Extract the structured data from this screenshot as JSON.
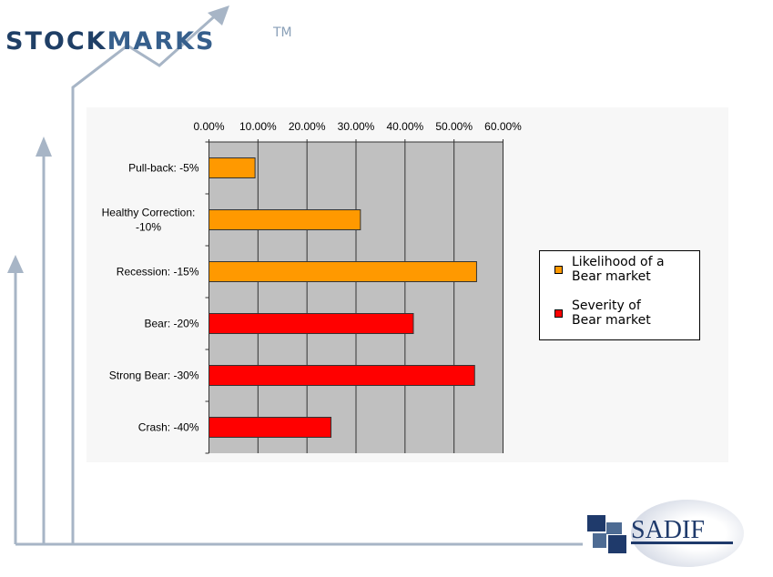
{
  "logo": {
    "text_a": "STOCK",
    "text_b": "MARKS",
    "tm": "TM"
  },
  "brand": {
    "text": "SADIF"
  },
  "chart_data": {
    "type": "bar",
    "orientation": "horizontal",
    "categories": [
      "Pull-back: -5%",
      "Healthy Correction: -10%",
      "Recession: -15%",
      "Bear: -20%",
      "Strong Bear: -30%",
      "Crash: -40%"
    ],
    "category_lines": [
      [
        "Pull-back: -5%"
      ],
      [
        "Healthy Correction:",
        "-10%"
      ],
      [
        "Recession: -15%"
      ],
      [
        "Bear: -20%"
      ],
      [
        "Strong Bear: -30%"
      ],
      [
        "Crash: -40%"
      ]
    ],
    "values": [
      9.4,
      30.9,
      54.6,
      41.7,
      54.2,
      24.9
    ],
    "series_index": [
      0,
      0,
      0,
      1,
      1,
      1
    ],
    "series": [
      {
        "name": "Likelihood of a Bear market",
        "name_lines": [
          "Likelihood of a",
          "Bear market"
        ],
        "color": "#ff9900"
      },
      {
        "name": "Severity of Bear market",
        "name_lines": [
          "Severity of",
          "Bear market"
        ],
        "color": "#ff0000"
      }
    ],
    "xlim": [
      0,
      60
    ],
    "xticks": [
      "0.00%",
      "10.00%",
      "20.00%",
      "30.00%",
      "40.00%",
      "50.00%",
      "60.00%"
    ],
    "axis_position": "top",
    "grid": true,
    "plot_background": "#c0c0c0",
    "legend_position": "right"
  }
}
